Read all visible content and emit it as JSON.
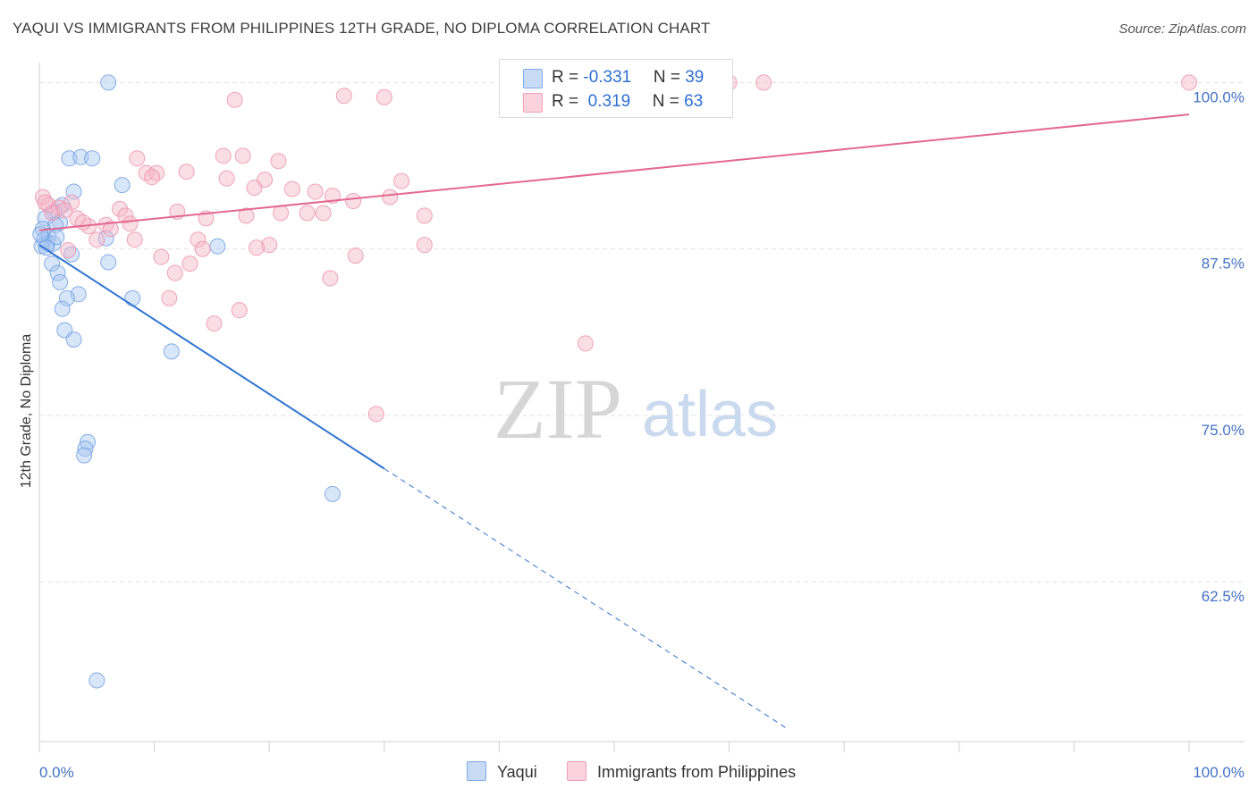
{
  "header": {
    "title": "YAQUI VS IMMIGRANTS FROM PHILIPPINES 12TH GRADE, NO DIPLOMA CORRELATION CHART",
    "source": "Source: ZipAtlas.com"
  },
  "watermark": {
    "zip": "ZIP",
    "atlas": "atlas"
  },
  "legend": {
    "rows": [
      {
        "r_label": "R = ",
        "r_value": "-0.331",
        "n_label": "N = ",
        "n_value": "39",
        "color": "#a9c7f2"
      },
      {
        "r_label": "R = ",
        "r_value": " 0.319",
        "n_label": "N = ",
        "n_value": "63",
        "color": "#f5b6c8"
      }
    ]
  },
  "bottom_legend": {
    "series_a": "Yaqui",
    "series_b": "Immigrants from Philippines"
  },
  "chart_data": {
    "type": "scatter",
    "title": "YAQUI VS IMMIGRANTS FROM PHILIPPINES 12TH GRADE, NO DIPLOMA CORRELATION CHART",
    "xlabel": "",
    "ylabel": "12th Grade, No Diploma",
    "xlim": [
      0,
      100
    ],
    "ylim": [
      50.5,
      101.5
    ],
    "x_tick_labels": [
      "0.0%",
      "100.0%"
    ],
    "y_ticks": [
      {
        "value": 100,
        "label": "100.0%"
      },
      {
        "value": 87.5,
        "label": "87.5%"
      },
      {
        "value": 75,
        "label": "75.0%"
      },
      {
        "value": 62.5,
        "label": "62.5%"
      }
    ],
    "grid": true,
    "legend_position": "top-center",
    "series": [
      {
        "name": "Yaqui",
        "color": "#6b9be0",
        "fill": "#a9c7f2",
        "r": -0.331,
        "n": 39,
        "trend": {
          "x0": 0,
          "y0": 87.8,
          "x1": 30,
          "y1": 71.0,
          "dashed_to_x": 65,
          "dashed_to_y": 51.5
        },
        "points": [
          [
            6,
            100.0
          ],
          [
            2.6,
            94.3
          ],
          [
            3.6,
            94.4
          ],
          [
            4.6,
            94.3
          ],
          [
            7.2,
            92.3
          ],
          [
            3,
            91.8
          ],
          [
            2,
            90.8
          ],
          [
            1.3,
            90.3
          ],
          [
            0.5,
            89.8
          ],
          [
            1.8,
            89.5
          ],
          [
            1.4,
            89.3
          ],
          [
            0.3,
            89.0
          ],
          [
            0.8,
            88.5
          ],
          [
            0.4,
            88.2
          ],
          [
            0.7,
            87.9
          ],
          [
            1.2,
            87.9
          ],
          [
            0.2,
            87.7
          ],
          [
            5.8,
            88.3
          ],
          [
            15.5,
            87.7
          ],
          [
            2.8,
            87.1
          ],
          [
            6,
            86.5
          ],
          [
            1.1,
            86.4
          ],
          [
            1.6,
            85.7
          ],
          [
            1.8,
            85.0
          ],
          [
            3.4,
            84.1
          ],
          [
            2.4,
            83.8
          ],
          [
            8.1,
            83.8
          ],
          [
            2,
            83.0
          ],
          [
            2.2,
            81.4
          ],
          [
            3,
            80.7
          ],
          [
            11.5,
            79.8
          ],
          [
            4.2,
            73.0
          ],
          [
            4,
            72.5
          ],
          [
            3.9,
            72.0
          ],
          [
            25.5,
            69.1
          ],
          [
            5,
            55.1
          ],
          [
            0.1,
            88.6
          ],
          [
            0.6,
            87.6
          ],
          [
            1.5,
            88.4
          ]
        ]
      },
      {
        "name": "Immigrants from Philippines",
        "color": "#ec8fab",
        "fill": "#f5b6c8",
        "r": 0.319,
        "n": 63,
        "trend": {
          "x0": 0,
          "y0": 88.9,
          "x1": 100,
          "y1": 97.6
        },
        "points": [
          [
            60,
            100.0
          ],
          [
            63,
            100.0
          ],
          [
            100,
            100.0
          ],
          [
            26.5,
            99.0
          ],
          [
            30,
            98.9
          ],
          [
            17,
            98.7
          ],
          [
            8.5,
            94.3
          ],
          [
            16,
            94.5
          ],
          [
            17.7,
            94.5
          ],
          [
            20.8,
            94.1
          ],
          [
            9.3,
            93.2
          ],
          [
            10.2,
            93.2
          ],
          [
            12.8,
            93.3
          ],
          [
            9.8,
            92.9
          ],
          [
            16.3,
            92.8
          ],
          [
            19.6,
            92.7
          ],
          [
            24,
            91.8
          ],
          [
            31.5,
            92.6
          ],
          [
            18.7,
            92.1
          ],
          [
            22,
            92.0
          ],
          [
            25.5,
            91.5
          ],
          [
            30.5,
            91.4
          ],
          [
            27.3,
            91.1
          ],
          [
            0.3,
            91.4
          ],
          [
            0.8,
            90.8
          ],
          [
            1.7,
            90.6
          ],
          [
            2.8,
            91.0
          ],
          [
            7,
            90.5
          ],
          [
            12,
            90.3
          ],
          [
            21,
            90.2
          ],
          [
            23.3,
            90.2
          ],
          [
            24.7,
            90.2
          ],
          [
            33.5,
            90.0
          ],
          [
            18,
            90.0
          ],
          [
            3.3,
            89.8
          ],
          [
            7.5,
            90.0
          ],
          [
            14.5,
            89.8
          ],
          [
            7.9,
            89.4
          ],
          [
            5.8,
            89.3
          ],
          [
            4.3,
            89.2
          ],
          [
            3.8,
            89.5
          ],
          [
            5,
            88.2
          ],
          [
            8.3,
            88.2
          ],
          [
            13.8,
            88.2
          ],
          [
            20,
            87.8
          ],
          [
            33.5,
            87.8
          ],
          [
            14.2,
            87.5
          ],
          [
            18.9,
            87.6
          ],
          [
            2.5,
            87.4
          ],
          [
            10.6,
            86.9
          ],
          [
            27.5,
            87.0
          ],
          [
            13.1,
            86.4
          ],
          [
            11.8,
            85.7
          ],
          [
            25.3,
            85.3
          ],
          [
            11.3,
            83.8
          ],
          [
            17.4,
            82.9
          ],
          [
            15.2,
            81.9
          ],
          [
            47.5,
            80.4
          ],
          [
            29.3,
            75.1
          ],
          [
            1.1,
            90.2
          ],
          [
            0.5,
            91.0
          ],
          [
            2.2,
            90.4
          ],
          [
            6.2,
            89.0
          ]
        ]
      }
    ]
  }
}
